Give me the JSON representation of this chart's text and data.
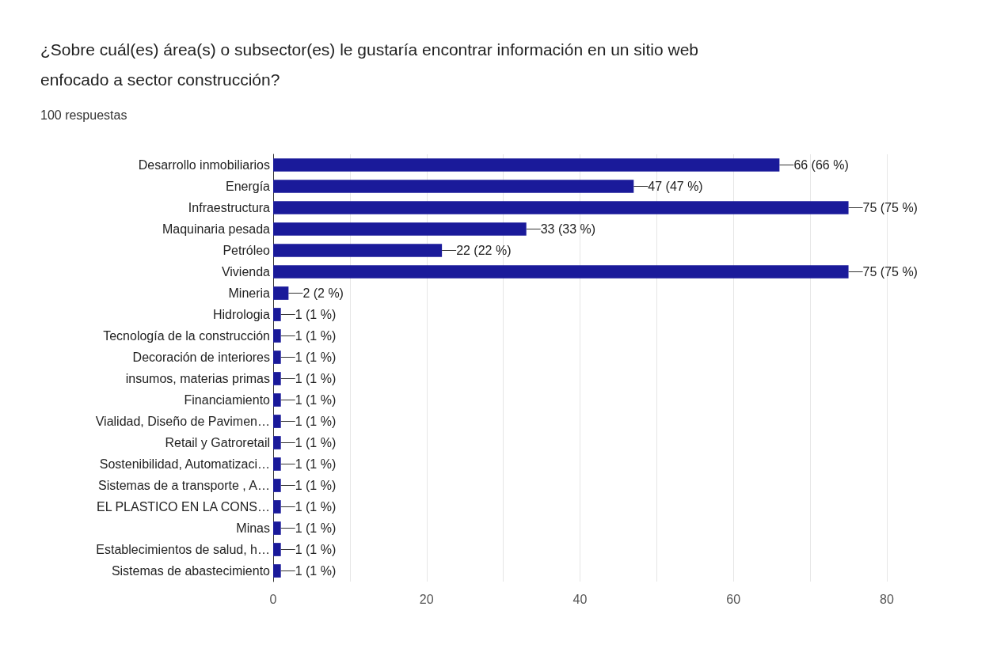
{
  "chart_data": {
    "type": "bar",
    "orientation": "horizontal",
    "title": "¿Sobre cuál(es) área(s) o subsector(es) le gustaría encontrar información en un sitio web enfocado a sector construcción?",
    "subtitle": "100 respuestas",
    "categories": [
      "Desarrollo inmobiliarios",
      "Energía",
      "Infraestructura",
      "Maquinaria pesada",
      "Petróleo",
      "Vivienda",
      "Mineria",
      "Hidrologia",
      "Tecnología de la construcción",
      "Decoración de interiores",
      "insumos, materias primas",
      "Financiamiento",
      "Vialidad, Diseño de Pavimen…",
      "Retail y Gatroretail",
      "Sostenibilidad, Automatizaci…",
      "Sistemas de a transporte , A…",
      "EL PLASTICO EN LA CONS…",
      "Minas",
      "Establecimientos de salud, h…",
      "Sistemas de abastecimiento"
    ],
    "values": [
      66,
      47,
      75,
      33,
      22,
      75,
      2,
      1,
      1,
      1,
      1,
      1,
      1,
      1,
      1,
      1,
      1,
      1,
      1,
      1
    ],
    "value_labels": [
      "66 (66 %)",
      "47 (47 %)",
      "75 (75 %)",
      "33 (33 %)",
      "22 (22 %)",
      "75 (75 %)",
      "2 (2 %)",
      "1 (1 %)",
      "1 (1 %)",
      "1 (1 %)",
      "1 (1 %)",
      "1 (1 %)",
      "1 (1 %)",
      "1 (1 %)",
      "1 (1 %)",
      "1 (1 %)",
      "1 (1 %)",
      "1 (1 %)",
      "1 (1 %)",
      "1 (1 %)"
    ],
    "color": "#1a1a9a",
    "xlim": [
      0,
      80
    ],
    "xticks": [
      0,
      {
        "value": 10,
        "label": null
      },
      20,
      {
        "value": 30,
        "label": null
      },
      40,
      {
        "value": 50,
        "label": null
      },
      60,
      {
        "value": 70,
        "label": null
      },
      80
    ],
    "grid": "x"
  }
}
